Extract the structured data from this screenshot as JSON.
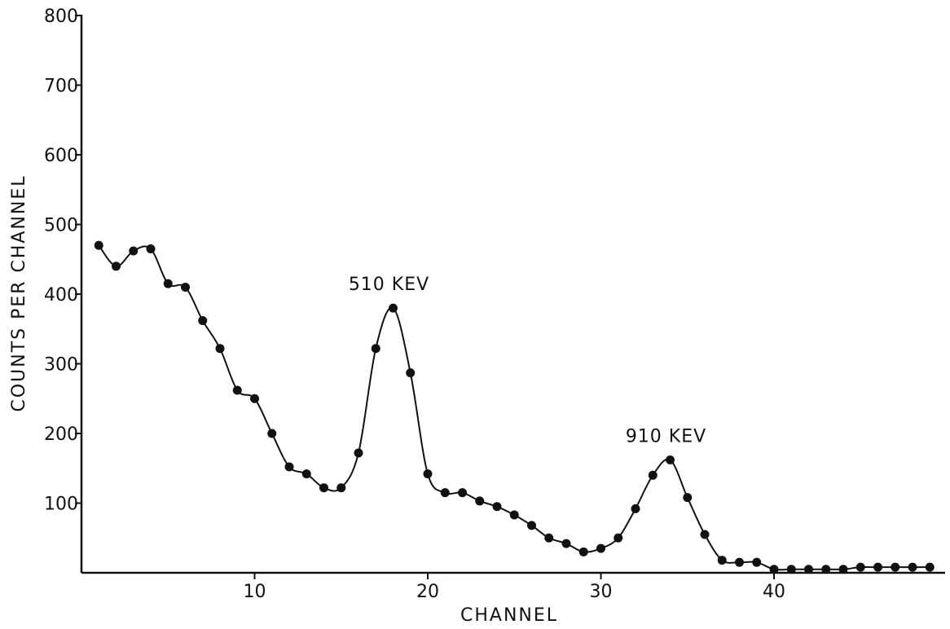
{
  "chart_data": {
    "type": "scatter",
    "title": "",
    "xlabel": "CHANNEL",
    "ylabel": "COUNTS PER CHANNEL",
    "xlim": [
      0,
      49
    ],
    "ylim": [
      0,
      800
    ],
    "x_ticks": [
      10,
      20,
      30,
      40
    ],
    "y_ticks": [
      100,
      200,
      300,
      400,
      500,
      600,
      700,
      800
    ],
    "grid": false,
    "points_connected_by_smooth_curve": true,
    "series": [
      {
        "x": [
          1,
          2,
          3,
          4,
          5,
          6,
          7,
          8,
          9,
          10,
          11,
          12,
          13,
          14,
          15,
          16,
          17,
          18,
          19,
          20,
          21,
          22,
          23,
          24,
          25,
          26,
          27,
          28,
          29,
          30,
          31,
          32,
          33,
          34,
          35,
          36,
          37,
          38,
          39,
          40,
          41,
          42,
          43,
          44,
          45,
          46,
          47,
          48,
          49
        ],
        "values": [
          470,
          440,
          462,
          465,
          415,
          410,
          362,
          322,
          262,
          250,
          200,
          152,
          142,
          122,
          122,
          172,
          322,
          380,
          287,
          142,
          115,
          115,
          103,
          95,
          83,
          68,
          50,
          42,
          30,
          35,
          50,
          92,
          140,
          162,
          108,
          55,
          18,
          15,
          15,
          5,
          5,
          5,
          5,
          5,
          8,
          8,
          8,
          8,
          8
        ]
      }
    ],
    "annotations": [
      {
        "text": "510 KEV",
        "x": 18,
        "y": 380
      },
      {
        "text": "910 KEV",
        "x": 34,
        "y": 162
      }
    ]
  }
}
